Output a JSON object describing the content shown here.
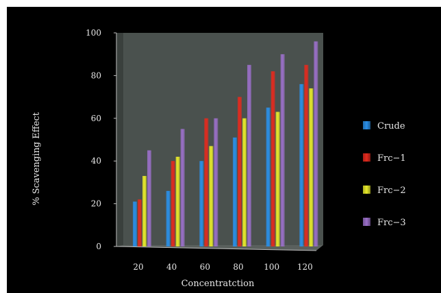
{
  "chart_data": {
    "type": "bar",
    "categories": [
      "20",
      "40",
      "60",
      "80",
      "100",
      "120"
    ],
    "series": [
      {
        "name": "Crude",
        "values": [
          21,
          26,
          40,
          51,
          65,
          76
        ],
        "color": "#2a8fe8"
      },
      {
        "name": "Frc−1",
        "values": [
          22,
          40,
          60,
          70,
          82,
          85
        ],
        "color": "#e32a1e"
      },
      {
        "name": "Frc−2",
        "values": [
          33,
          42,
          47,
          60,
          63,
          74
        ],
        "color": "#e8ea2a"
      },
      {
        "name": "Frc−3",
        "values": [
          45,
          55,
          60,
          85,
          90,
          96
        ],
        "color": "#9a6fc8"
      }
    ],
    "yticks": [
      0,
      20,
      40,
      60,
      80,
      100
    ],
    "ylim": [
      0,
      100
    ],
    "xlabel": "Concentratction",
    "ylabel": "% Scavenging Effect",
    "legend_position": "right",
    "grid": false,
    "plot_background": "#4a514e"
  }
}
